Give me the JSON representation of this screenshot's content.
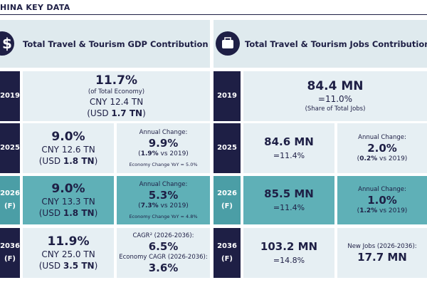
{
  "header": {
    "title": "HINA KEY DATA"
  },
  "panels": [
    {
      "title": "Total Travel & Tourism GDP Contribution"
    },
    {
      "title": "Total Travel & Tourism Jobs Contribution"
    }
  ],
  "rows": [
    {
      "year": [
        "2019"
      ],
      "gdp": {
        "value": "11.7%",
        "note": "(of Total Economy)",
        "cny": "CNY 12.4 TN",
        "usd": [
          "(USD ",
          "1.7 TN",
          ")"
        ]
      },
      "jobs": {
        "value": "84.4 MN",
        "share": "=11.0%",
        "note": "(Share of Total Jobs)"
      }
    },
    {
      "year": [
        "2025"
      ],
      "gdp": {
        "value": "9.0%",
        "cny": "CNY 12.6 TN",
        "usd": [
          "(USD ",
          "1.8 TN",
          ")"
        ]
      },
      "gdp_change": {
        "label": "Annual Change:",
        "value": "9.9%",
        "vs": [
          "(",
          "1.9%",
          " vs 2019)"
        ],
        "economy": "Economy Change YoY = 5.0%"
      },
      "jobs": {
        "value": "84.6 MN",
        "share": "=11.4%"
      },
      "jobs_change": {
        "label": "Annual Change:",
        "value": "2.0%",
        "vs": [
          "(",
          "0.2%",
          " vs 2019)"
        ]
      }
    },
    {
      "year": [
        "2026",
        "(F)"
      ],
      "gdp": {
        "value": "9.0%",
        "cny": "CNY 13.3 TN",
        "usd": [
          "(USD ",
          "1.8 TN",
          ")"
        ]
      },
      "gdp_change": {
        "label": "Annual Change:",
        "value": "5.3%",
        "vs": [
          "(",
          "7.3%",
          " vs 2019)"
        ],
        "economy": "Economy Change YoY = 4.8%"
      },
      "jobs": {
        "value": "85.5 MN",
        "share": "=11.4%"
      },
      "jobs_change": {
        "label": "Annual Change:",
        "value": "1.0%",
        "vs": [
          "(",
          "1.2%",
          " vs 2019)"
        ]
      }
    },
    {
      "year": [
        "2036",
        "(F)"
      ],
      "gdp": {
        "value": "11.9%",
        "cny": "CNY 25.0 TN",
        "usd": [
          "(USD ",
          "3.5 TN",
          ")"
        ]
      },
      "gdp_change": {
        "label": "CAGR² (2026-2036):",
        "value": "6.5%",
        "economy_label": "Economy CAGR (2026-2036):",
        "economy_value": "3.6%"
      },
      "jobs": {
        "value": "103.2 MN",
        "share": "=14.8%"
      },
      "jobs_change": {
        "label": "New Jobs (2026-2036):",
        "value": "17.7 MN"
      }
    }
  ]
}
